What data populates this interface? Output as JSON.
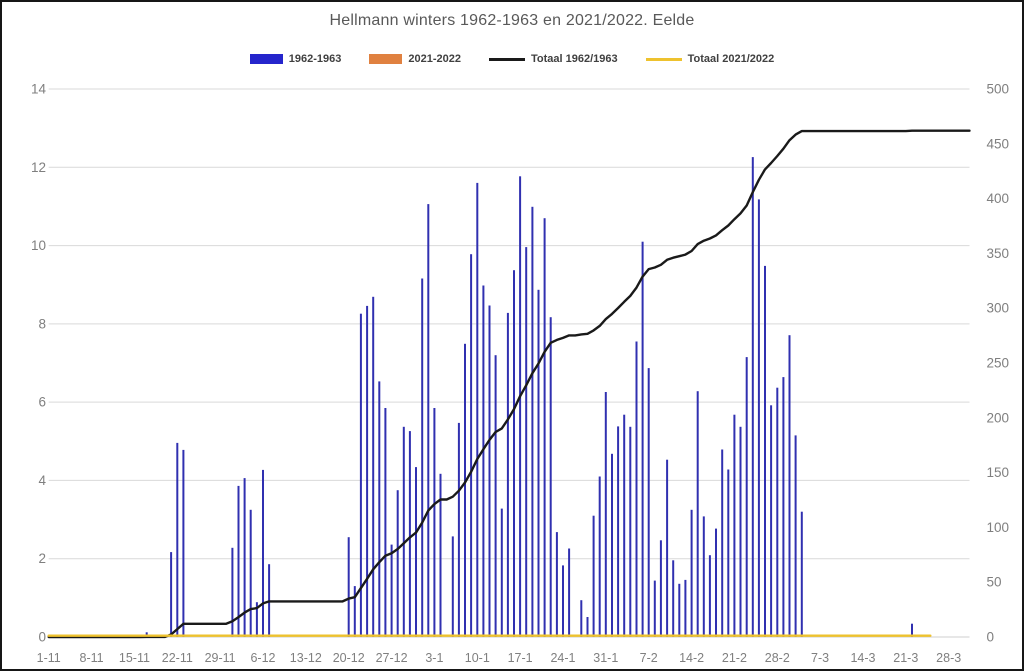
{
  "title": "Hellmann winters 1962-1963 en 2021/2022. Eelde",
  "colors": {
    "bar_1962_1963": "#3030b0",
    "bar_2021_2022": "#e08140",
    "line_totaal_1962_1963": "#1a1a1a",
    "line_totaal_2021_2022": "#eec22e",
    "title_text": "#595959",
    "axis_text": "#7f7f7f",
    "legend_text": "#404040",
    "gridline": "#d9d9d9",
    "baseline": "#cfcfcf",
    "border": "#161616"
  },
  "legend": [
    {
      "label": "1962-1963",
      "marker": "bar",
      "color": "#2525cc"
    },
    {
      "label": "2021-2022",
      "marker": "bar",
      "color": "#e08140"
    },
    {
      "label": "Totaal 1962/1963",
      "marker": "line",
      "color": "#1a1a1a"
    },
    {
      "label": "Totaal 2021/2022",
      "marker": "line",
      "color": "#eec22e"
    }
  ],
  "chart_data": {
    "type": "bar",
    "subtype": "daily bars (left axis) + cumulative total lines (right axis)",
    "title": "Hellmann winters 1962-1963 en 2021/2022. Eelde",
    "grid": "horizontal",
    "legend_position": "top",
    "x_axis": {
      "tick_labels": [
        "1-11",
        "8-11",
        "15-11",
        "22-11",
        "29-11",
        "6-12",
        "13-12",
        "20-12",
        "27-12",
        "3-1",
        "10-1",
        "17-1",
        "24-1",
        "31-1",
        "7-2",
        "14-2",
        "21-2",
        "28-2",
        "7-3",
        "14-3",
        "21-3",
        "28-3"
      ],
      "tick_interval_days": 7,
      "start_date": "1-11",
      "total_days": 151
    },
    "y_axis_left": {
      "ticks": [
        0,
        2,
        4,
        6,
        8,
        10,
        12,
        14
      ],
      "range": [
        0,
        14
      ]
    },
    "y_axis_right": {
      "ticks": [
        0,
        50,
        100,
        150,
        200,
        250,
        300,
        350,
        400,
        450,
        500
      ],
      "range": [
        0,
        500
      ]
    },
    "series": [
      {
        "name": "1962-1963",
        "type": "bar",
        "axis": "left",
        "color": "#3030b0",
        "points": [
          {
            "date": "17-11",
            "day": 16,
            "value": 0.12
          },
          {
            "date": "21-11",
            "day": 20,
            "value": 2.17
          },
          {
            "date": "22-11",
            "day": 21,
            "value": 4.96
          },
          {
            "date": "23-11",
            "day": 22,
            "value": 4.78
          },
          {
            "date": "1-12",
            "day": 30,
            "value": 2.28
          },
          {
            "date": "2-12",
            "day": 31,
            "value": 3.86
          },
          {
            "date": "3-12",
            "day": 32,
            "value": 4.06
          },
          {
            "date": "4-12",
            "day": 33,
            "value": 3.25
          },
          {
            "date": "5-12",
            "day": 34,
            "value": 0.89
          },
          {
            "date": "6-12",
            "day": 35,
            "value": 4.27
          },
          {
            "date": "7-12",
            "day": 36,
            "value": 1.86
          },
          {
            "date": "20-12",
            "day": 49,
            "value": 2.55
          },
          {
            "date": "21-12",
            "day": 50,
            "value": 1.3
          },
          {
            "date": "22-12",
            "day": 51,
            "value": 8.26
          },
          {
            "date": "23-12",
            "day": 52,
            "value": 8.46
          },
          {
            "date": "24-12",
            "day": 53,
            "value": 8.69
          },
          {
            "date": "25-12",
            "day": 54,
            "value": 6.53
          },
          {
            "date": "26-12",
            "day": 55,
            "value": 5.85
          },
          {
            "date": "27-12",
            "day": 56,
            "value": 2.36
          },
          {
            "date": "28-12",
            "day": 57,
            "value": 3.75
          },
          {
            "date": "29-12",
            "day": 58,
            "value": 5.37
          },
          {
            "date": "30-12",
            "day": 59,
            "value": 5.26
          },
          {
            "date": "31-12",
            "day": 60,
            "value": 4.34
          },
          {
            "date": "1-1",
            "day": 61,
            "value": 9.16
          },
          {
            "date": "2-1",
            "day": 62,
            "value": 11.06
          },
          {
            "date": "3-1",
            "day": 63,
            "value": 5.85
          },
          {
            "date": "4-1",
            "day": 64,
            "value": 4.17
          },
          {
            "date": "6-1",
            "day": 66,
            "value": 2.57
          },
          {
            "date": "7-1",
            "day": 67,
            "value": 5.47
          },
          {
            "date": "8-1",
            "day": 68,
            "value": 7.49
          },
          {
            "date": "9-1",
            "day": 69,
            "value": 9.78
          },
          {
            "date": "10-1",
            "day": 70,
            "value": 11.6
          },
          {
            "date": "11-1",
            "day": 71,
            "value": 8.98
          },
          {
            "date": "12-1",
            "day": 72,
            "value": 8.47
          },
          {
            "date": "13-1",
            "day": 73,
            "value": 7.2
          },
          {
            "date": "14-1",
            "day": 74,
            "value": 3.28
          },
          {
            "date": "15-1",
            "day": 75,
            "value": 8.28
          },
          {
            "date": "16-1",
            "day": 76,
            "value": 9.37
          },
          {
            "date": "17-1",
            "day": 77,
            "value": 11.77
          },
          {
            "date": "18-1",
            "day": 78,
            "value": 9.96
          },
          {
            "date": "19-1",
            "day": 79,
            "value": 10.99
          },
          {
            "date": "20-1",
            "day": 80,
            "value": 8.87
          },
          {
            "date": "21-1",
            "day": 81,
            "value": 10.7
          },
          {
            "date": "22-1",
            "day": 82,
            "value": 8.17
          },
          {
            "date": "23-1",
            "day": 83,
            "value": 2.68
          },
          {
            "date": "24-1",
            "day": 84,
            "value": 1.83
          },
          {
            "date": "25-1",
            "day": 85,
            "value": 2.26
          },
          {
            "date": "27-1",
            "day": 87,
            "value": 0.94
          },
          {
            "date": "28-1",
            "day": 88,
            "value": 0.51
          },
          {
            "date": "29-1",
            "day": 89,
            "value": 3.1
          },
          {
            "date": "30-1",
            "day": 90,
            "value": 4.1
          },
          {
            "date": "31-1",
            "day": 91,
            "value": 6.26
          },
          {
            "date": "1-2",
            "day": 92,
            "value": 4.68
          },
          {
            "date": "2-2",
            "day": 93,
            "value": 5.38
          },
          {
            "date": "3-2",
            "day": 94,
            "value": 5.68
          },
          {
            "date": "4-2",
            "day": 95,
            "value": 5.37
          },
          {
            "date": "5-2",
            "day": 96,
            "value": 7.55
          },
          {
            "date": "6-2",
            "day": 97,
            "value": 10.1
          },
          {
            "date": "7-2",
            "day": 98,
            "value": 6.87
          },
          {
            "date": "8-2",
            "day": 99,
            "value": 1.44
          },
          {
            "date": "9-2",
            "day": 100,
            "value": 2.47
          },
          {
            "date": "10-2",
            "day": 101,
            "value": 4.53
          },
          {
            "date": "11-2",
            "day": 102,
            "value": 1.96
          },
          {
            "date": "12-2",
            "day": 103,
            "value": 1.36
          },
          {
            "date": "13-2",
            "day": 104,
            "value": 1.46
          },
          {
            "date": "14-2",
            "day": 105,
            "value": 3.25
          },
          {
            "date": "15-2",
            "day": 106,
            "value": 6.28
          },
          {
            "date": "16-2",
            "day": 107,
            "value": 3.08
          },
          {
            "date": "17-2",
            "day": 108,
            "value": 2.09
          },
          {
            "date": "18-2",
            "day": 109,
            "value": 2.77
          },
          {
            "date": "19-2",
            "day": 110,
            "value": 4.79
          },
          {
            "date": "20-2",
            "day": 111,
            "value": 4.28
          },
          {
            "date": "21-2",
            "day": 112,
            "value": 5.68
          },
          {
            "date": "22-2",
            "day": 113,
            "value": 5.37
          },
          {
            "date": "23-2",
            "day": 114,
            "value": 7.15
          },
          {
            "date": "24-2",
            "day": 115,
            "value": 12.26
          },
          {
            "date": "25-2",
            "day": 116,
            "value": 11.18
          },
          {
            "date": "26-2",
            "day": 117,
            "value": 9.48
          },
          {
            "date": "27-2",
            "day": 118,
            "value": 5.92
          },
          {
            "date": "28-2",
            "day": 119,
            "value": 6.37
          },
          {
            "date": "1-3",
            "day": 120,
            "value": 6.64
          },
          {
            "date": "2-3",
            "day": 121,
            "value": 7.71
          },
          {
            "date": "3-3",
            "day": 122,
            "value": 5.15
          },
          {
            "date": "4-3",
            "day": 123,
            "value": 3.2
          },
          {
            "date": "22-3",
            "day": 141,
            "value": 0.34
          }
        ]
      },
      {
        "name": "2021-2022",
        "type": "bar",
        "axis": "left",
        "color": "#e08140",
        "points": []
      },
      {
        "name": "Totaal 1962/1963",
        "type": "line",
        "axis": "right",
        "color": "#1a1a1a",
        "derive": "cumulative_sum_of_series_1962-1963",
        "end_value_approx": 462
      },
      {
        "name": "Totaal 2021/2022",
        "type": "line",
        "axis": "right",
        "color": "#eec22e",
        "flat_value": 0,
        "start_day": 0,
        "end_day": 144
      }
    ]
  }
}
